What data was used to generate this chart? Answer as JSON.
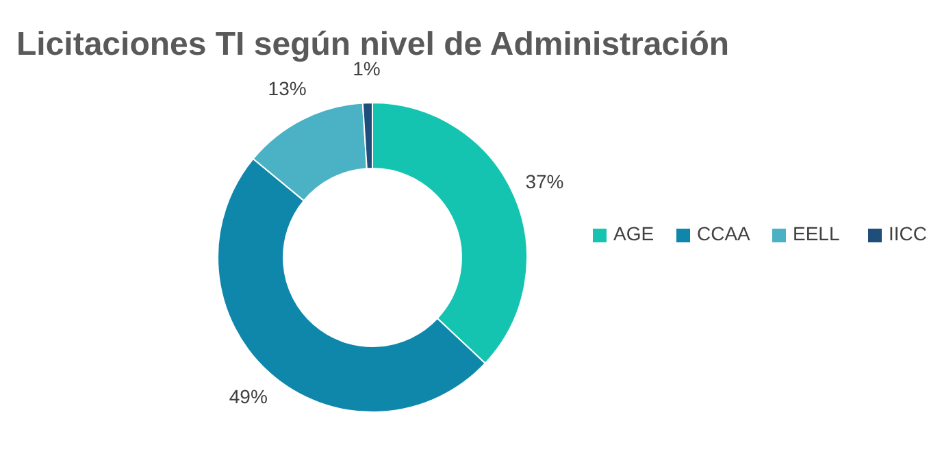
{
  "chart_data": {
    "type": "donut",
    "title": "Licitaciones TI según nivel de Administración",
    "categories": [
      "AGE",
      "CCAA",
      "EELL",
      "IICC"
    ],
    "values": [
      37,
      49,
      13,
      1
    ],
    "colors": [
      "#14c4b0",
      "#0e87ab",
      "#4bb1c4",
      "#1f4e7a"
    ],
    "value_labels": [
      "37%",
      "49%",
      "13%",
      "1%"
    ],
    "legend": "right"
  }
}
